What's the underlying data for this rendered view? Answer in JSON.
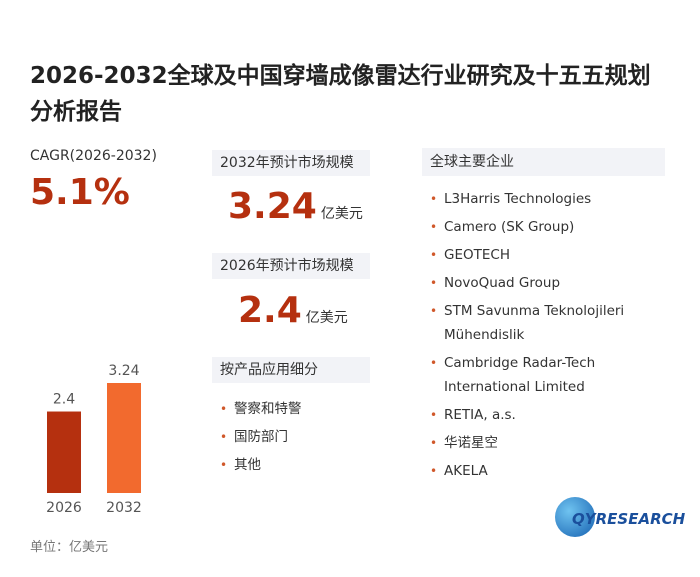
{
  "header": {
    "title": "2026-2032全球及中国穿墙成像雷达行业研究及十五五规划分析报告"
  },
  "cagr": {
    "label": "CAGR(2026-2032)",
    "value": "5.1%"
  },
  "market": [
    {
      "label": "2032年预计市场规模",
      "value": "3.24",
      "unit": "亿美元"
    },
    {
      "label": "2026年预计市场规模",
      "value": "2.4",
      "unit": "亿美元"
    }
  ],
  "segments": {
    "label": "按产品应用细分",
    "items": [
      "警察和特警",
      "国防部门",
      "其他"
    ]
  },
  "companies": {
    "label": "全球主要企业",
    "items": [
      "L3Harris Technologies",
      "Camero (SK Group)",
      "GEOTECH",
      "NovoQuad Group",
      "STM Savunma Teknolojileri Mühendislik",
      "Cambridge Radar-Tech International Limited",
      "RETIA, a.s.",
      "华诺星空",
      "AKELA"
    ]
  },
  "unit_note": "单位：亿美元",
  "logo": "QYRESEARCH",
  "chart_data": {
    "type": "bar",
    "categories": [
      "2026",
      "2032"
    ],
    "values": [
      2.4,
      3.24
    ],
    "colors": [
      "#b5300f",
      "#f26a2e"
    ]
  }
}
